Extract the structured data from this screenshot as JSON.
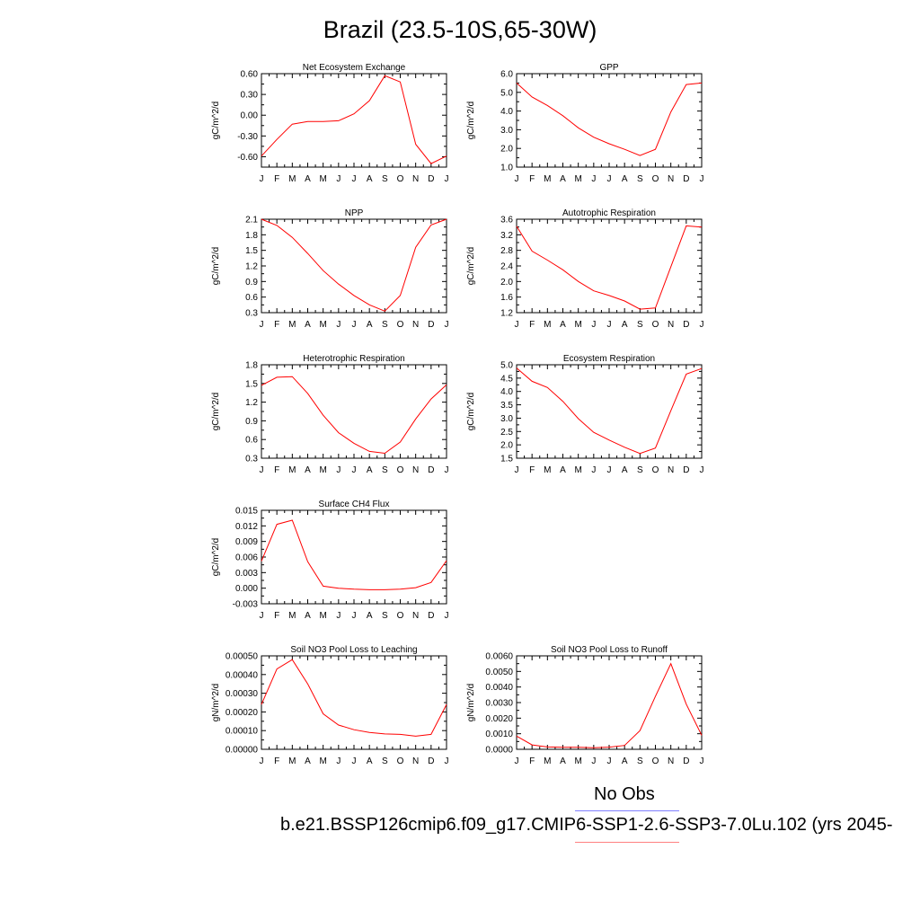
{
  "title": "Brazil (23.5-10S,65-30W)",
  "legend": {
    "obs_label": "No Obs",
    "obs_color": "#8080ff",
    "model_color": "#ff8080"
  },
  "case_label": "b.e21.BSSP126cmip6.f09_g17.CMIP6-SSP1-2.6-SSP3-7.0Lu.102 (yrs 2045-",
  "line_color": "#ff0000",
  "chart_data": [
    {
      "type": "line",
      "title": "Net Ecosystem Exchange",
      "ylabel": "gC/m^2/d",
      "categories": [
        "J",
        "F",
        "M",
        "A",
        "M",
        "J",
        "J",
        "A",
        "S",
        "O",
        "N",
        "D",
        "J"
      ],
      "ylim": [
        -0.75,
        0.6
      ],
      "yticks": [
        -0.6,
        -0.3,
        0.0,
        0.3,
        0.6
      ],
      "ytick_labels": [
        "-0.60",
        "-0.30",
        "0.00",
        "0.30",
        "0.60"
      ],
      "values": [
        -0.59,
        -0.35,
        -0.13,
        -0.09,
        -0.09,
        -0.08,
        0.02,
        0.21,
        0.57,
        0.48,
        -0.42,
        -0.7,
        -0.59
      ]
    },
    {
      "type": "line",
      "title": "GPP",
      "ylabel": "gC/m^2/d",
      "categories": [
        "J",
        "F",
        "M",
        "A",
        "M",
        "J",
        "J",
        "A",
        "S",
        "O",
        "N",
        "D",
        "J"
      ],
      "ylim": [
        1.0,
        6.0
      ],
      "yticks": [
        1,
        2,
        3,
        4,
        5,
        6
      ],
      "ytick_labels": [
        "1.0",
        "2.0",
        "3.0",
        "4.0",
        "5.0",
        "6.0"
      ],
      "values": [
        5.5,
        4.75,
        4.3,
        3.75,
        3.1,
        2.6,
        2.25,
        1.95,
        1.62,
        1.95,
        3.95,
        5.42,
        5.5
      ]
    },
    {
      "type": "line",
      "title": "NPP",
      "ylabel": "gC/m^2/d",
      "categories": [
        "J",
        "F",
        "M",
        "A",
        "M",
        "J",
        "J",
        "A",
        "S",
        "O",
        "N",
        "D",
        "J"
      ],
      "ylim": [
        0.3,
        2.1
      ],
      "yticks": [
        0.3,
        0.6,
        0.9,
        1.2,
        1.5,
        1.8,
        2.1
      ],
      "ytick_labels": [
        "0.3",
        "0.6",
        "0.9",
        "1.2",
        "1.5",
        "1.8",
        "2.1"
      ],
      "values": [
        2.1,
        1.98,
        1.75,
        1.44,
        1.11,
        0.85,
        0.63,
        0.45,
        0.33,
        0.63,
        1.56,
        1.99,
        2.1
      ]
    },
    {
      "type": "line",
      "title": "Autotrophic Respiration",
      "ylabel": "gC/m^2/d",
      "categories": [
        "J",
        "F",
        "M",
        "A",
        "M",
        "J",
        "J",
        "A",
        "S",
        "O",
        "N",
        "D",
        "J"
      ],
      "ylim": [
        1.2,
        3.6
      ],
      "yticks": [
        1.2,
        1.6,
        2.0,
        2.4,
        2.8,
        3.2,
        3.6
      ],
      "ytick_labels": [
        "1.2",
        "1.6",
        "2.0",
        "2.4",
        "2.8",
        "3.2",
        "3.6"
      ],
      "values": [
        3.42,
        2.78,
        2.55,
        2.3,
        2.0,
        1.76,
        1.64,
        1.5,
        1.29,
        1.32,
        2.38,
        3.43,
        3.4
      ]
    },
    {
      "type": "line",
      "title": "Heterotrophic Respiration",
      "ylabel": "gC/m^2/d",
      "categories": [
        "J",
        "F",
        "M",
        "A",
        "M",
        "J",
        "J",
        "A",
        "S",
        "O",
        "N",
        "D",
        "J"
      ],
      "ylim": [
        0.3,
        1.8
      ],
      "yticks": [
        0.3,
        0.6,
        0.9,
        1.2,
        1.5,
        1.8
      ],
      "ytick_labels": [
        "0.3",
        "0.6",
        "0.9",
        "1.2",
        "1.5",
        "1.8"
      ],
      "values": [
        1.47,
        1.6,
        1.61,
        1.34,
        0.99,
        0.71,
        0.54,
        0.41,
        0.38,
        0.56,
        0.93,
        1.25,
        1.48
      ]
    },
    {
      "type": "line",
      "title": "Ecosystem Respiration",
      "ylabel": "gC/m^2/d",
      "categories": [
        "J",
        "F",
        "M",
        "A",
        "M",
        "J",
        "J",
        "A",
        "S",
        "O",
        "N",
        "D",
        "J"
      ],
      "ylim": [
        1.5,
        5.0
      ],
      "yticks": [
        1.5,
        2.0,
        2.5,
        3.0,
        3.5,
        4.0,
        4.5,
        5.0
      ],
      "ytick_labels": [
        "1.5",
        "2.0",
        "2.5",
        "3.0",
        "3.5",
        "4.0",
        "4.5",
        "5.0"
      ],
      "values": [
        4.88,
        4.38,
        4.15,
        3.63,
        2.98,
        2.47,
        2.18,
        1.91,
        1.68,
        1.88,
        3.28,
        4.65,
        4.86
      ]
    },
    {
      "type": "line",
      "title": "Surface CH4 Flux",
      "ylabel": "gC/m^2/d",
      "categories": [
        "J",
        "F",
        "M",
        "A",
        "M",
        "J",
        "J",
        "A",
        "S",
        "O",
        "N",
        "D",
        "J"
      ],
      "ylim": [
        -0.003,
        0.015
      ],
      "yticks": [
        -0.003,
        0.0,
        0.003,
        0.006,
        0.009,
        0.012,
        0.015
      ],
      "ytick_labels": [
        "-0.003",
        "0.000",
        "0.003",
        "0.006",
        "0.009",
        "0.012",
        "0.015"
      ],
      "values": [
        0.0052,
        0.0123,
        0.0131,
        0.0051,
        0.0004,
        0.0,
        -0.0002,
        -0.0003,
        -0.0003,
        -0.0002,
        0.0001,
        0.0011,
        0.0053
      ]
    },
    {
      "type": "line",
      "title": "Soil NO3 Pool Loss to Leaching",
      "ylabel": "gN/m^2/d",
      "categories": [
        "J",
        "F",
        "M",
        "A",
        "M",
        "J",
        "J",
        "A",
        "S",
        "O",
        "N",
        "D",
        "J"
      ],
      "ylim": [
        0.0,
        0.0005
      ],
      "yticks": [
        0.0,
        0.0001,
        0.0002,
        0.0003,
        0.0004,
        0.0005
      ],
      "ytick_labels": [
        "0.00000",
        "0.00010",
        "0.00020",
        "0.00030",
        "0.00040",
        "0.00050"
      ],
      "values": [
        0.00024,
        0.00043,
        0.00048,
        0.00035,
        0.00019,
        0.00013,
        0.000105,
        9e-05,
        8.2e-05,
        8e-05,
        7e-05,
        8e-05,
        0.00024
      ]
    },
    {
      "type": "line",
      "title": "Soil NO3 Pool Loss to Runoff",
      "ylabel": "gN/m^2/d",
      "categories": [
        "J",
        "F",
        "M",
        "A",
        "M",
        "J",
        "J",
        "A",
        "S",
        "O",
        "N",
        "D",
        "J"
      ],
      "ylim": [
        0.0,
        0.006
      ],
      "yticks": [
        0.0,
        0.001,
        0.002,
        0.003,
        0.004,
        0.005,
        0.006
      ],
      "ytick_labels": [
        "0.0000",
        "0.0010",
        "0.0020",
        "0.0030",
        "0.0040",
        "0.0050",
        "0.0060"
      ],
      "values": [
        0.00085,
        0.00028,
        0.00015,
        0.00013,
        0.00013,
        0.0001,
        0.00014,
        0.00025,
        0.0012,
        0.0034,
        0.0055,
        0.0029,
        0.0009
      ]
    }
  ]
}
